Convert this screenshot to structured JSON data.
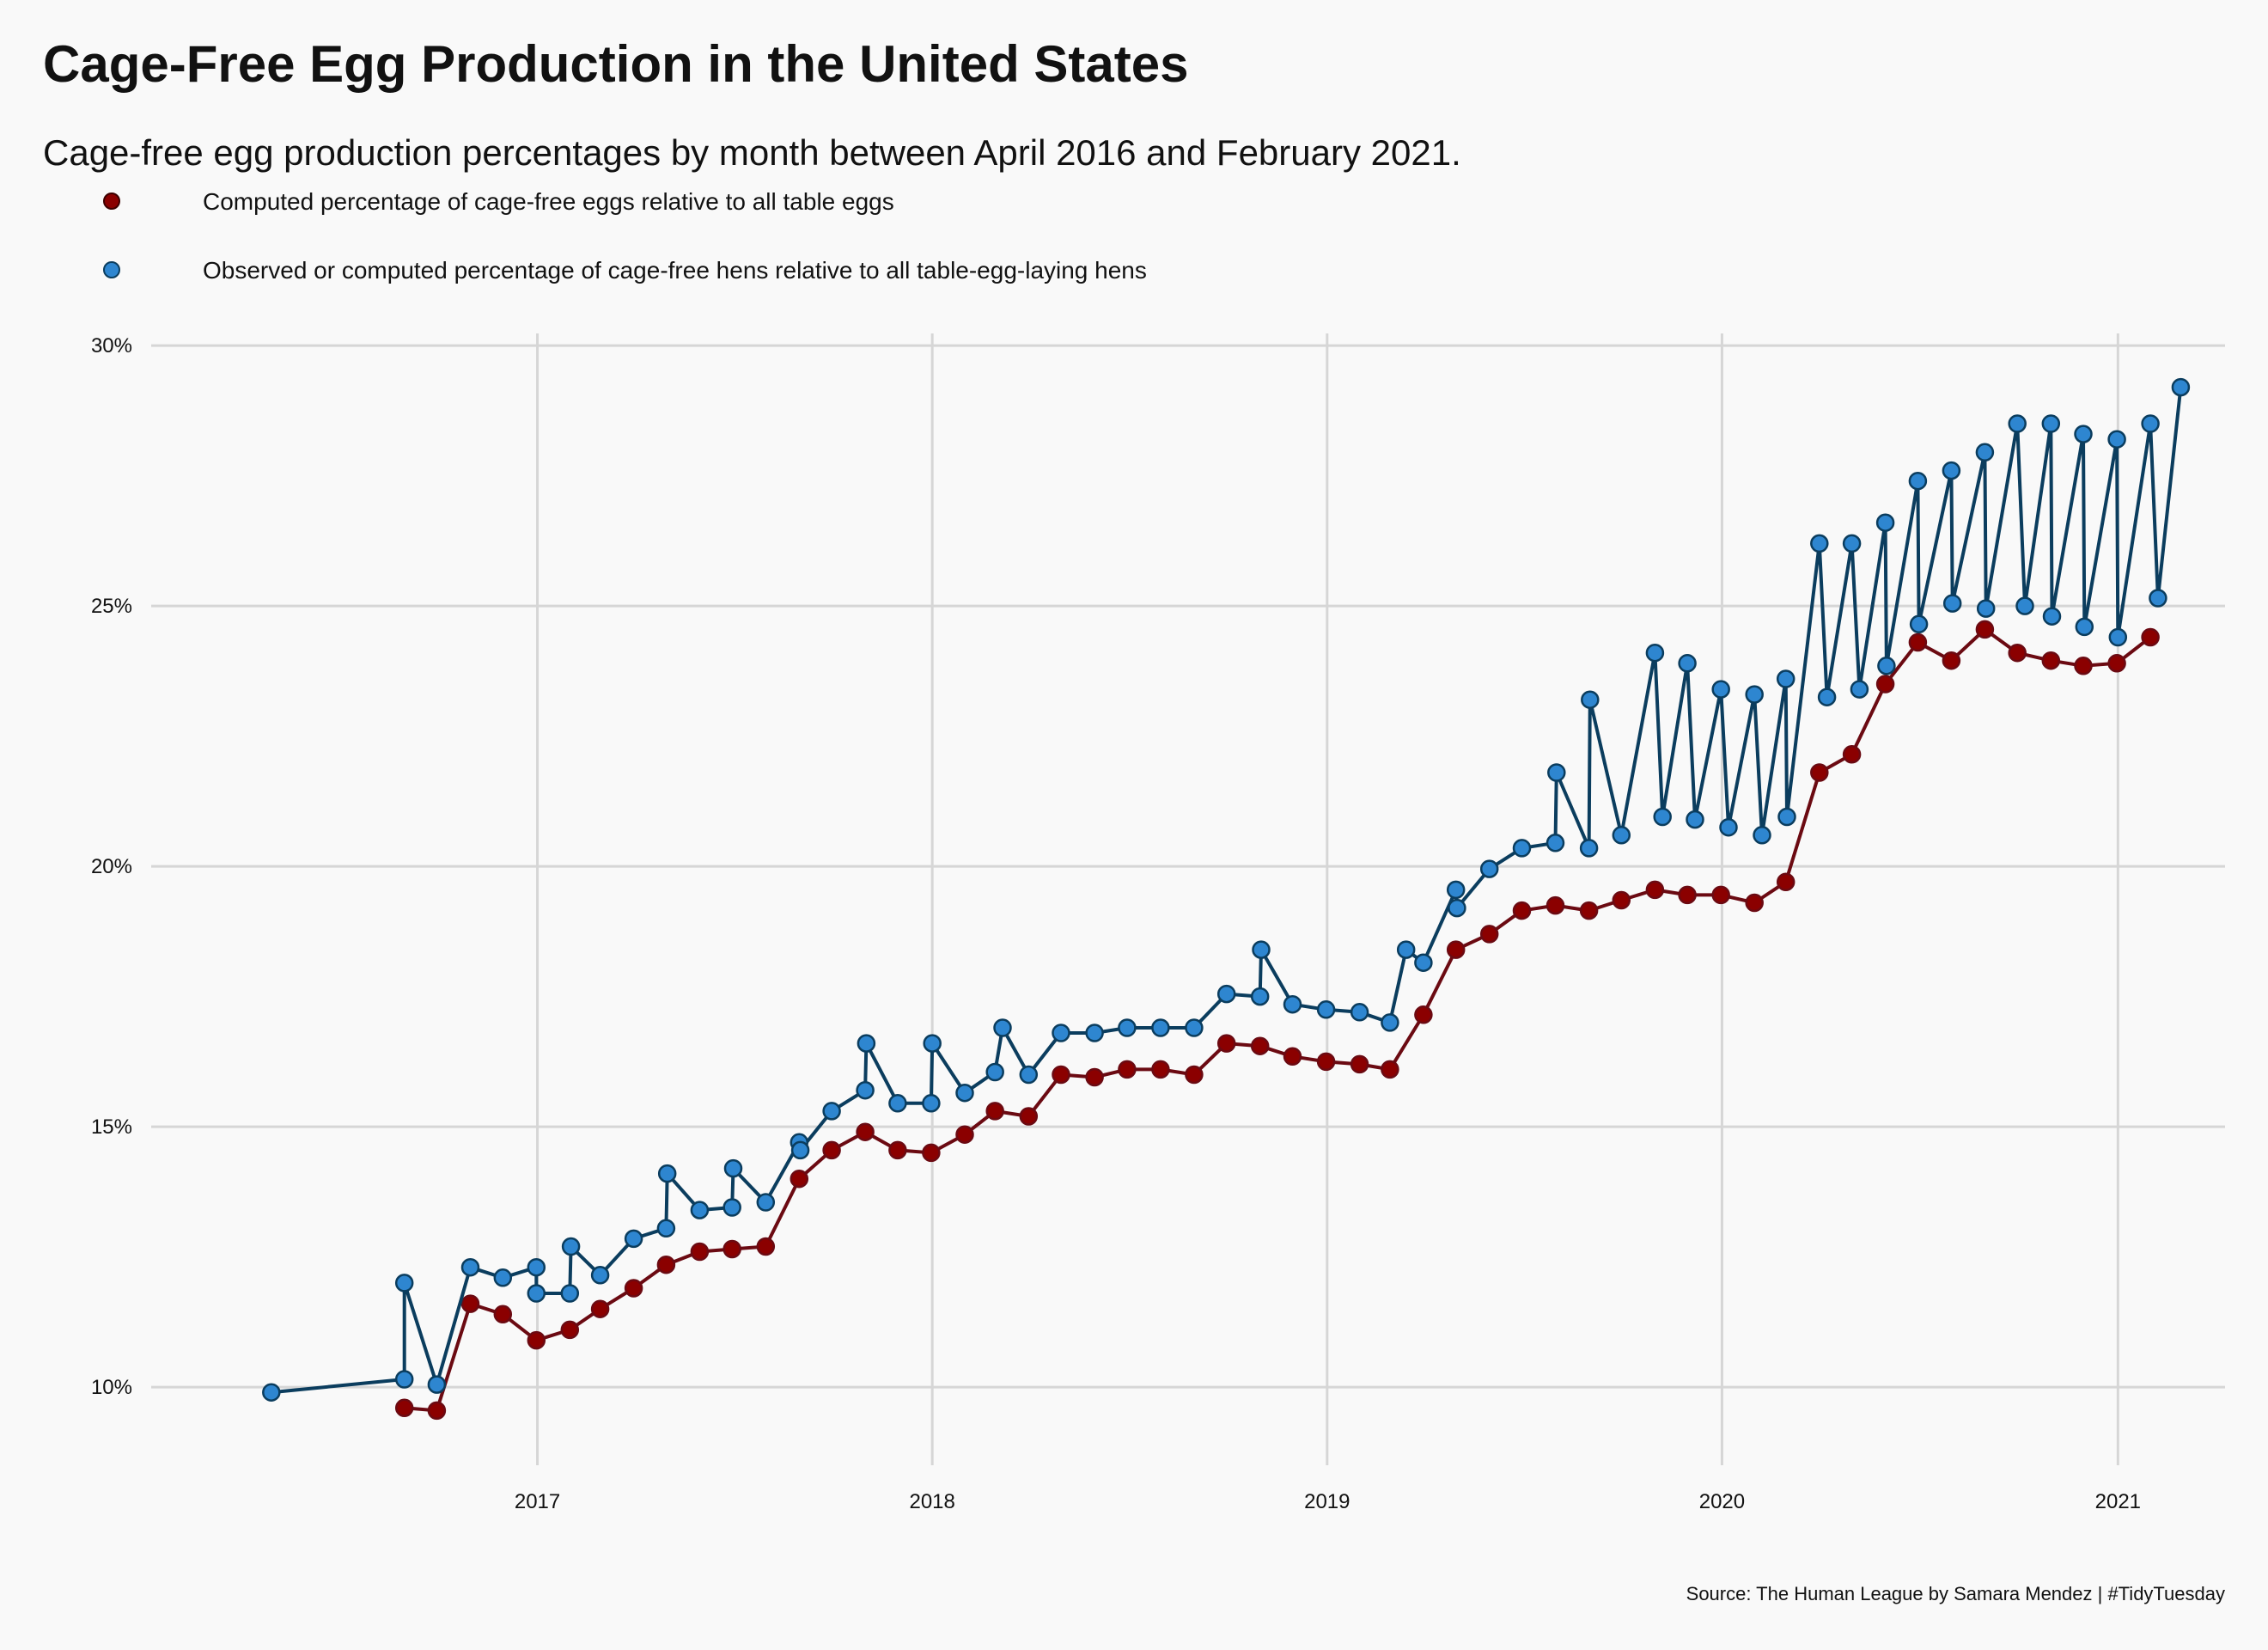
{
  "chart_data": {
    "type": "line",
    "title": "Cage-Free Egg Production in the United States",
    "subtitle": "Cage-free egg production percentages by month between April 2016 and February 2021.",
    "caption": "Source: The Human League by Samara Mendez | #TidyTuesday",
    "xlabel": "",
    "ylabel": "",
    "ylim": [
      8.5,
      30.2
    ],
    "xlim": [
      "2016-01-10",
      "2021-04-10"
    ],
    "y_ticks": [
      10,
      15,
      20,
      25,
      30
    ],
    "y_tick_labels": [
      "10%",
      "15%",
      "20%",
      "25%",
      "30%"
    ],
    "x_ticks": [
      "2017-01-01",
      "2018-01-01",
      "2019-01-01",
      "2020-01-01",
      "2021-01-01"
    ],
    "x_tick_labels": [
      "2017",
      "2018",
      "2019",
      "2020",
      "2021"
    ],
    "grid": true,
    "legend_position": "top-left",
    "series": [
      {
        "name": "Computed percentage of cage-free eggs relative to all table eggs",
        "color": "#8b0000",
        "line_color": "#6b0a12",
        "points": [
          [
            "2016-08-31",
            9.6
          ],
          [
            "2016-09-30",
            9.55
          ],
          [
            "2016-10-31",
            11.6
          ],
          [
            "2016-11-30",
            11.4
          ],
          [
            "2016-12-31",
            10.9
          ],
          [
            "2017-01-31",
            11.1
          ],
          [
            "2017-02-28",
            11.5
          ],
          [
            "2017-03-31",
            11.9
          ],
          [
            "2017-04-30",
            12.35
          ],
          [
            "2017-05-31",
            12.6
          ],
          [
            "2017-06-30",
            12.65
          ],
          [
            "2017-07-31",
            12.7
          ],
          [
            "2017-08-31",
            14.0
          ],
          [
            "2017-09-30",
            14.55
          ],
          [
            "2017-10-31",
            14.9
          ],
          [
            "2017-11-30",
            14.55
          ],
          [
            "2017-12-31",
            14.5
          ],
          [
            "2018-01-31",
            14.85
          ],
          [
            "2018-02-28",
            15.3
          ],
          [
            "2018-03-31",
            15.2
          ],
          [
            "2018-04-30",
            16.0
          ],
          [
            "2018-05-31",
            15.95
          ],
          [
            "2018-06-30",
            16.1
          ],
          [
            "2018-07-31",
            16.1
          ],
          [
            "2018-08-31",
            16.0
          ],
          [
            "2018-09-30",
            16.6
          ],
          [
            "2018-10-31",
            16.55
          ],
          [
            "2018-11-30",
            16.35
          ],
          [
            "2018-12-31",
            16.25
          ],
          [
            "2019-01-31",
            16.2
          ],
          [
            "2019-02-28",
            16.1
          ],
          [
            "2019-03-31",
            17.15
          ],
          [
            "2019-04-30",
            18.4
          ],
          [
            "2019-05-31",
            18.7
          ],
          [
            "2019-06-30",
            19.15
          ],
          [
            "2019-07-31",
            19.25
          ],
          [
            "2019-08-31",
            19.15
          ],
          [
            "2019-09-30",
            19.35
          ],
          [
            "2019-10-31",
            19.55
          ],
          [
            "2019-11-30",
            19.45
          ],
          [
            "2019-12-31",
            19.45
          ],
          [
            "2020-01-31",
            19.3
          ],
          [
            "2020-02-29",
            19.7
          ],
          [
            "2020-03-31",
            21.8
          ],
          [
            "2020-04-30",
            22.15
          ],
          [
            "2020-05-31",
            23.5
          ],
          [
            "2020-06-30",
            24.3
          ],
          [
            "2020-07-31",
            23.95
          ],
          [
            "2020-08-31",
            24.55
          ],
          [
            "2020-09-30",
            24.1
          ],
          [
            "2020-10-31",
            23.95
          ],
          [
            "2020-11-30",
            23.85
          ],
          [
            "2020-12-31",
            23.9
          ],
          [
            "2021-01-31",
            24.4
          ]
        ]
      },
      {
        "name": "Observed or computed percentage of cage-free hens relative to all table-egg-laying hens",
        "color": "#2e86d0",
        "line_color": "#0b3d5e",
        "points": [
          [
            "2016-04-30",
            9.9
          ],
          [
            "2016-08-31",
            10.15
          ],
          [
            "2016-08-31",
            12.0
          ],
          [
            "2016-09-30",
            10.05
          ],
          [
            "2016-10-31",
            12.3
          ],
          [
            "2016-11-30",
            12.1
          ],
          [
            "2016-12-31",
            12.3
          ],
          [
            "2016-12-31",
            11.8
          ],
          [
            "2017-01-31",
            11.8
          ],
          [
            "2017-02-01",
            12.7
          ],
          [
            "2017-02-28",
            12.15
          ],
          [
            "2017-03-31",
            12.85
          ],
          [
            "2017-04-30",
            13.05
          ],
          [
            "2017-05-01",
            14.1
          ],
          [
            "2017-05-31",
            13.4
          ],
          [
            "2017-06-30",
            13.45
          ],
          [
            "2017-07-01",
            14.2
          ],
          [
            "2017-07-31",
            13.55
          ],
          [
            "2017-08-31",
            14.7
          ],
          [
            "2017-09-01",
            14.55
          ],
          [
            "2017-09-30",
            15.3
          ],
          [
            "2017-10-31",
            15.7
          ],
          [
            "2017-11-01",
            16.6
          ],
          [
            "2017-11-30",
            15.45
          ],
          [
            "2017-12-31",
            15.45
          ],
          [
            "2018-01-01",
            16.6
          ],
          [
            "2018-01-31",
            15.65
          ],
          [
            "2018-02-28",
            16.05
          ],
          [
            "2018-03-07",
            16.9
          ],
          [
            "2018-03-31",
            16.0
          ],
          [
            "2018-04-30",
            16.8
          ],
          [
            "2018-05-31",
            16.8
          ],
          [
            "2018-06-30",
            16.9
          ],
          [
            "2018-07-31",
            16.9
          ],
          [
            "2018-08-31",
            16.9
          ],
          [
            "2018-09-30",
            17.55
          ],
          [
            "2018-10-31",
            17.5
          ],
          [
            "2018-11-01",
            18.4
          ],
          [
            "2018-11-30",
            17.35
          ],
          [
            "2018-12-31",
            17.25
          ],
          [
            "2019-01-31",
            17.2
          ],
          [
            "2019-02-28",
            17.0
          ],
          [
            "2019-03-15",
            18.4
          ],
          [
            "2019-03-31",
            18.15
          ],
          [
            "2019-04-30",
            19.55
          ],
          [
            "2019-05-01",
            19.2
          ],
          [
            "2019-05-31",
            19.95
          ],
          [
            "2019-06-30",
            20.35
          ],
          [
            "2019-07-31",
            20.45
          ],
          [
            "2019-08-01",
            21.8
          ],
          [
            "2019-08-31",
            20.35
          ],
          [
            "2019-09-01",
            23.2
          ],
          [
            "2019-09-30",
            20.6
          ],
          [
            "2019-10-31",
            24.1
          ],
          [
            "2019-11-07",
            20.95
          ],
          [
            "2019-11-30",
            23.9
          ],
          [
            "2019-12-07",
            20.9
          ],
          [
            "2019-12-31",
            23.4
          ],
          [
            "2020-01-07",
            20.75
          ],
          [
            "2020-01-31",
            23.3
          ],
          [
            "2020-02-07",
            20.6
          ],
          [
            "2020-02-29",
            23.6
          ],
          [
            "2020-03-01",
            20.95
          ],
          [
            "2020-03-31",
            26.2
          ],
          [
            "2020-04-07",
            23.25
          ],
          [
            "2020-04-30",
            26.2
          ],
          [
            "2020-05-07",
            23.4
          ],
          [
            "2020-05-31",
            26.6
          ],
          [
            "2020-06-01",
            23.85
          ],
          [
            "2020-06-30",
            27.4
          ],
          [
            "2020-07-01",
            24.65
          ],
          [
            "2020-07-31",
            27.6
          ],
          [
            "2020-08-01",
            25.05
          ],
          [
            "2020-08-31",
            27.95
          ],
          [
            "2020-09-01",
            24.95
          ],
          [
            "2020-09-30",
            28.5
          ],
          [
            "2020-10-07",
            25.0
          ],
          [
            "2020-10-31",
            28.5
          ],
          [
            "2020-11-01",
            24.8
          ],
          [
            "2020-11-30",
            28.3
          ],
          [
            "2020-12-01",
            24.6
          ],
          [
            "2020-12-31",
            28.2
          ],
          [
            "2021-01-01",
            24.4
          ],
          [
            "2021-01-31",
            28.5
          ],
          [
            "2021-02-07",
            25.15
          ],
          [
            "2021-02-28",
            29.2
          ]
        ]
      }
    ]
  }
}
